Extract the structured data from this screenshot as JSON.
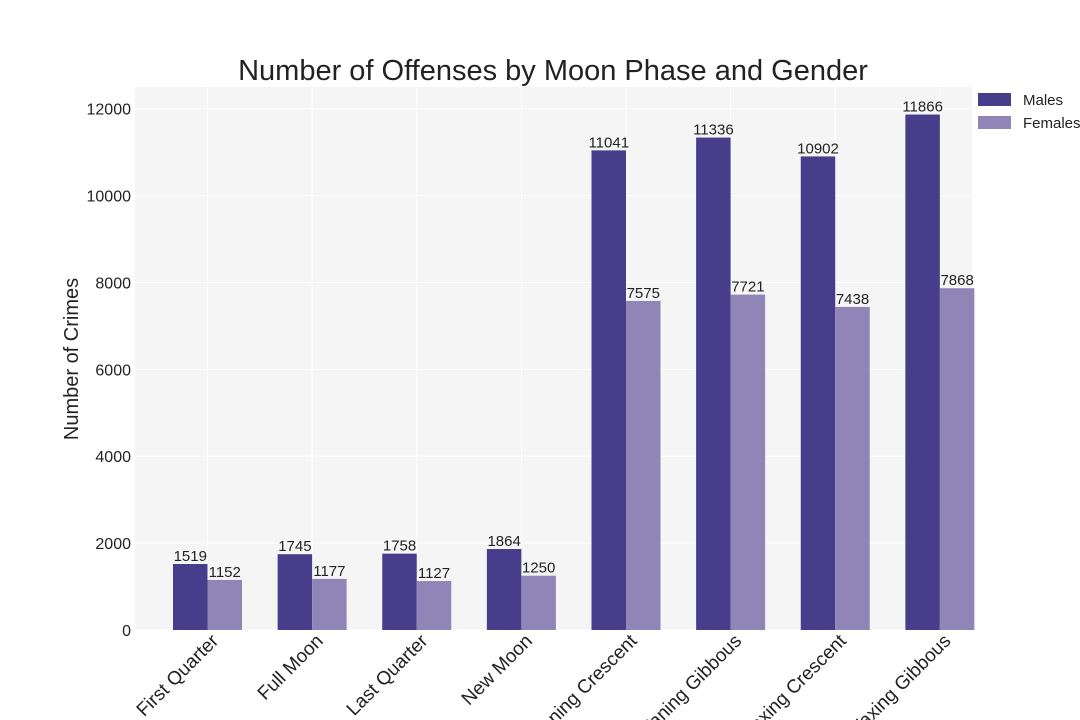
{
  "chart_data": {
    "type": "bar",
    "title": "Number of Offenses by Moon Phase and Gender",
    "xlabel": "",
    "ylabel": "Number of Crimes",
    "ylim": [
      0,
      12500
    ],
    "yticks": [
      0,
      2000,
      4000,
      6000,
      8000,
      10000,
      12000
    ],
    "grid": true,
    "legend": "top-right",
    "categories": [
      "First Quarter",
      "Full Moon",
      "Last Quarter",
      "New Moon",
      "Waning Crescent",
      "Waning Gibbous",
      "Waxing Crescent",
      "Waxing Gibbous"
    ],
    "series": [
      {
        "name": "Males",
        "color": "#483d8b",
        "values": [
          1519,
          1745,
          1758,
          1864,
          11041,
          11336,
          10902,
          11866
        ]
      },
      {
        "name": "Females",
        "color": "#8f86b7",
        "values": [
          1152,
          1177,
          1127,
          1250,
          7575,
          7721,
          7438,
          7868
        ]
      }
    ]
  }
}
